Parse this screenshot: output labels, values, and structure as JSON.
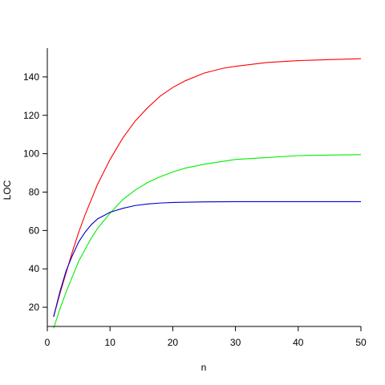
{
  "chart_data": {
    "type": "line",
    "title": "",
    "xlabel": "n",
    "ylabel": "LOC",
    "xlim": [
      0,
      50
    ],
    "ylim": [
      10,
      155
    ],
    "x_ticks": [
      0,
      10,
      20,
      30,
      40,
      50
    ],
    "y_ticks": [
      20,
      40,
      60,
      80,
      100,
      120,
      140
    ],
    "grid": false,
    "legend": "none",
    "series": [
      {
        "color": "#ff0000",
        "x": [
          1,
          2,
          3,
          4,
          5,
          6,
          7,
          8,
          10,
          12,
          14,
          16,
          18,
          20,
          22,
          25,
          28,
          30,
          35,
          40,
          45,
          50
        ],
        "y": [
          15,
          27,
          38,
          49,
          59,
          68,
          76,
          84,
          97,
          108,
          117,
          124,
          130,
          134.5,
          138,
          142,
          144.5,
          145.5,
          147.5,
          148.5,
          149,
          149.5
        ]
      },
      {
        "color": "#00ee00",
        "x": [
          1,
          2,
          3,
          4,
          5,
          6,
          7,
          8,
          10,
          12,
          14,
          16,
          18,
          20,
          22,
          25,
          28,
          30,
          35,
          40,
          45,
          50
        ],
        "y": [
          9,
          19,
          28,
          36,
          44,
          50,
          56,
          61,
          69,
          76,
          81,
          85,
          88,
          90.5,
          92.5,
          94.5,
          96,
          97,
          98,
          99,
          99.3,
          99.5
        ]
      },
      {
        "color": "#0000cc",
        "x": [
          1,
          2,
          3,
          4,
          5,
          6,
          7,
          8,
          10,
          12,
          14,
          16,
          18,
          20,
          25,
          30,
          40,
          50
        ],
        "y": [
          15,
          28,
          39,
          47,
          54,
          59,
          63,
          66,
          69.5,
          71.5,
          73,
          73.8,
          74.3,
          74.6,
          74.9,
          75,
          75,
          75
        ]
      }
    ]
  }
}
